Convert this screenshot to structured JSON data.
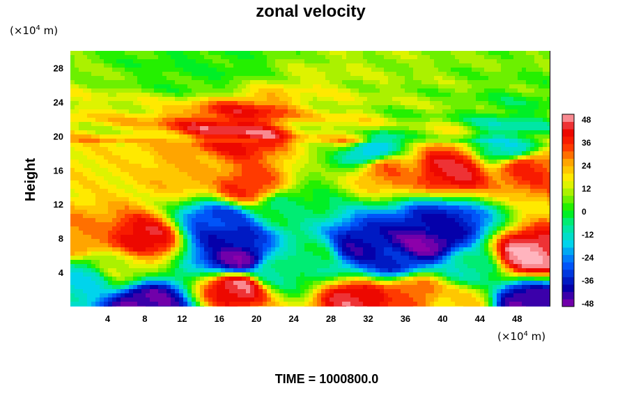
{
  "chart_data": {
    "type": "heatmap",
    "title": "zonal velocity",
    "xlabel": "",
    "ylabel": "Height",
    "x_unit": {
      "prefix": "(×10",
      "exp": "4",
      "suffix": " m)"
    },
    "y_unit": {
      "prefix": "(×10",
      "exp": "4",
      "suffix": " m)"
    },
    "xlim": [
      0,
      51.5
    ],
    "ylim": [
      0,
      30
    ],
    "x_ticks": [
      4,
      8,
      12,
      16,
      20,
      24,
      28,
      32,
      36,
      40,
      44,
      48
    ],
    "y_ticks": [
      4,
      8,
      12,
      16,
      20,
      24,
      28
    ],
    "colorbar": {
      "ticks": [
        48,
        36,
        24,
        12,
        0,
        -12,
        -24,
        -36,
        -48
      ],
      "vmin": -52,
      "vmax": 52,
      "step": 4
    },
    "footer": "TIME = 1000800.0",
    "features": [
      {
        "x": 14,
        "y": 28.5,
        "u": 1
      },
      {
        "x": 18,
        "y": 20.2,
        "u": 42
      },
      {
        "x": 30,
        "y": 20.0,
        "u": 18
      },
      {
        "x": 32,
        "y": 18.3,
        "u": -20
      },
      {
        "x": 47,
        "y": 18.6,
        "u": -14
      },
      {
        "x": 34,
        "y": 16.0,
        "u": 30
      },
      {
        "x": 41,
        "y": 16.0,
        "u": 44
      },
      {
        "x": 49,
        "y": 16.3,
        "u": 36
      },
      {
        "x": 13,
        "y": 15.5,
        "u": 24
      },
      {
        "x": 19,
        "y": 14.0,
        "u": 36
      },
      {
        "x": 2,
        "y": 16.0,
        "u": 18
      },
      {
        "x": 23,
        "y": 11.5,
        "u": -4
      },
      {
        "x": 8,
        "y": 8.0,
        "u": 44
      },
      {
        "x": 1,
        "y": 8.0,
        "u": 28
      },
      {
        "x": 5,
        "y": 4.5,
        "u": 14
      },
      {
        "x": 2,
        "y": 3.3,
        "u": -16
      },
      {
        "x": 17,
        "y": 8.0,
        "u": -40
      },
      {
        "x": 18,
        "y": 5.5,
        "u": -50
      },
      {
        "x": 16,
        "y": 10.0,
        "u": -34
      },
      {
        "x": 18,
        "y": 2.3,
        "u": 48
      },
      {
        "x": 8,
        "y": 0.4,
        "u": -50
      },
      {
        "x": 31,
        "y": 7.0,
        "u": -42
      },
      {
        "x": 35,
        "y": 5.5,
        "u": -38
      },
      {
        "x": 38,
        "y": 7.5,
        "u": -52
      },
      {
        "x": 40,
        "y": 9.5,
        "u": -40
      },
      {
        "x": 26,
        "y": 6.0,
        "u": -4
      },
      {
        "x": 31,
        "y": 0.8,
        "u": 46
      },
      {
        "x": 37,
        "y": 1.8,
        "u": 32
      },
      {
        "x": 42,
        "y": 0.5,
        "u": 20
      },
      {
        "x": 43,
        "y": 4.5,
        "u": -10
      },
      {
        "x": 49,
        "y": 6.0,
        "u": 52
      },
      {
        "x": 49,
        "y": 0.5,
        "u": -48
      },
      {
        "x": 22,
        "y": 4.0,
        "u": -8
      }
    ]
  }
}
